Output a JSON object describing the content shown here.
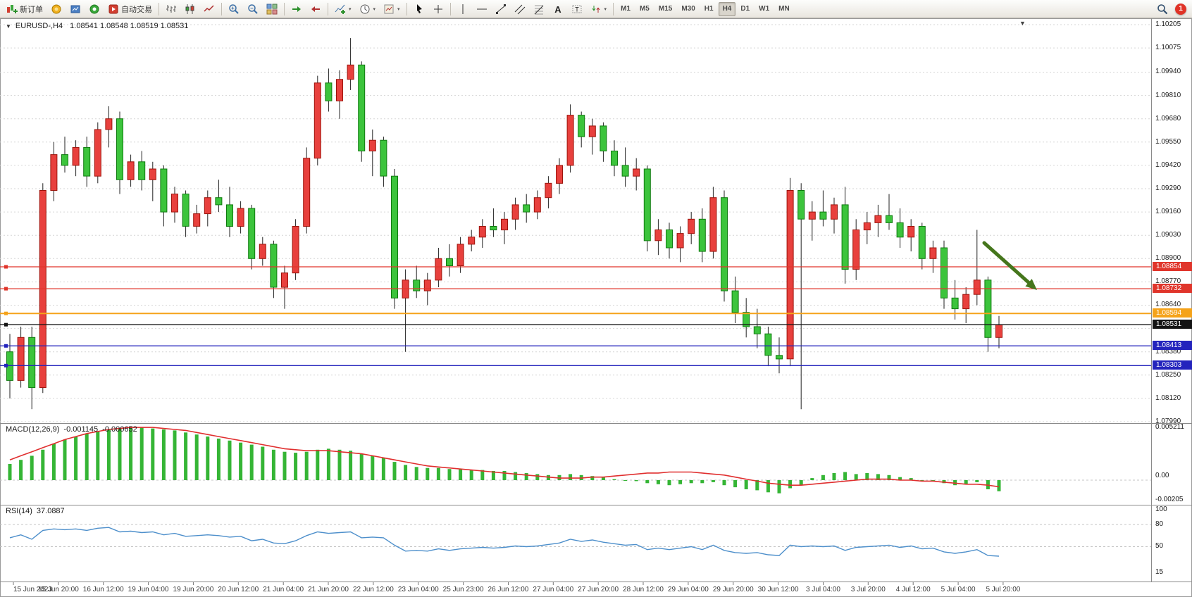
{
  "toolbar": {
    "new_order": "新订单",
    "auto_trading": "自动交易",
    "timeframes": [
      "M1",
      "M5",
      "M15",
      "M30",
      "H1",
      "H4",
      "D1",
      "W1",
      "MN"
    ],
    "active_timeframe": "H4",
    "notification_badge": "1",
    "icons": [
      "new-order",
      "mql5",
      "market",
      "signals",
      "auto-trading",
      "bar-chart",
      "candle-chart",
      "line-chart",
      "zoom-in",
      "zoom-out",
      "tile-windows",
      "auto-scroll",
      "chart-shift",
      "indicators",
      "periods",
      "templates",
      "cursor",
      "crosshair",
      "vertical-line",
      "horizontal-line",
      "trendline",
      "channel",
      "fibonacci",
      "text",
      "text-label",
      "arrows",
      "search",
      "notification"
    ]
  },
  "chart": {
    "symbol_period": "EURUSD-,H4",
    "quote_line": "1.08541 1.08548 1.08519 1.08531"
  },
  "chart_data": {
    "type": "candlestick",
    "symbol": "EURUSD-",
    "period": "H4",
    "up_color": "#e8403d",
    "down_color": "#3cc43c",
    "price_axis": {
      "min": 1.0799,
      "max": 1.10205,
      "labels": [
        1.10205,
        1.10075,
        1.0994,
        1.0981,
        1.0968,
        1.0955,
        1.0942,
        1.0929,
        1.0916,
        1.0903,
        1.089,
        1.0877,
        1.0864,
        1.0838,
        1.0825,
        1.0812,
        1.0799
      ],
      "unlabeled_grid": [
        1.0851
      ]
    },
    "time_labels": [
      "15 Jun 2023",
      "15 Jun 20:00",
      "16 Jun 12:00",
      "19 Jun 04:00",
      "19 Jun 20:00",
      "20 Jun 12:00",
      "21 Jun 04:00",
      "21 Jun 20:00",
      "22 Jun 12:00",
      "23 Jun 04:00",
      "25 Jun 23:00",
      "26 Jun 12:00",
      "27 Jun 04:00",
      "27 Jun 20:00",
      "28 Jun 12:00",
      "29 Jun 04:00",
      "29 Jun 20:00",
      "30 Jun 12:00",
      "3 Jul 04:00",
      "3 Jul 20:00",
      "4 Jul 12:00",
      "5 Jul 04:00",
      "5 Jul 20:00"
    ],
    "candles": [
      [
        1.0838,
        1.0848,
        1.0812,
        1.0822
      ],
      [
        1.0822,
        1.0852,
        1.0818,
        1.0846
      ],
      [
        1.0846,
        1.0852,
        1.0806,
        1.0818
      ],
      [
        1.0818,
        1.0932,
        1.0815,
        1.0928
      ],
      [
        1.0928,
        1.0955,
        1.0922,
        1.0948
      ],
      [
        1.0948,
        1.0958,
        1.0938,
        1.0942
      ],
      [
        1.0942,
        1.0956,
        1.0936,
        1.0952
      ],
      [
        1.0952,
        1.0958,
        1.093,
        1.0936
      ],
      [
        1.0936,
        1.0966,
        1.0932,
        1.0962
      ],
      [
        1.0962,
        1.0975,
        1.0952,
        1.0968
      ],
      [
        1.0968,
        1.0972,
        1.0926,
        1.0934
      ],
      [
        1.0934,
        1.0948,
        1.093,
        1.0944
      ],
      [
        1.0944,
        1.095,
        1.0928,
        1.0934
      ],
      [
        1.0934,
        1.0944,
        1.0922,
        1.094
      ],
      [
        1.094,
        1.0942,
        1.0908,
        1.0916
      ],
      [
        1.0916,
        1.093,
        1.091,
        1.0926
      ],
      [
        1.0926,
        1.0928,
        1.0902,
        1.0908
      ],
      [
        1.0908,
        1.092,
        1.0904,
        1.0915
      ],
      [
        1.0915,
        1.0928,
        1.0908,
        1.0924
      ],
      [
        1.0924,
        1.0934,
        1.0916,
        1.092
      ],
      [
        1.092,
        1.093,
        1.0902,
        1.0908
      ],
      [
        1.0908,
        1.0922,
        1.0904,
        1.0918
      ],
      [
        1.0918,
        1.092,
        1.0884,
        1.089
      ],
      [
        1.089,
        1.0902,
        1.0886,
        1.0898
      ],
      [
        1.0898,
        1.09,
        1.0868,
        1.0874
      ],
      [
        1.0874,
        1.0886,
        1.0862,
        1.0882
      ],
      [
        1.0882,
        1.0912,
        1.0878,
        1.0908
      ],
      [
        1.0908,
        1.0952,
        1.0904,
        1.0946
      ],
      [
        1.0946,
        1.0992,
        1.0942,
        1.0988
      ],
      [
        1.0988,
        1.0996,
        1.0972,
        1.0978
      ],
      [
        1.0978,
        1.0995,
        1.0968,
        1.099
      ],
      [
        1.099,
        1.1013,
        1.0984,
        1.0998
      ],
      [
        1.0998,
        1.1,
        1.0944,
        1.095
      ],
      [
        1.095,
        1.0962,
        1.0936,
        1.0956
      ],
      [
        1.0956,
        1.0958,
        1.093,
        1.0936
      ],
      [
        1.0936,
        1.094,
        1.0862,
        1.0868
      ],
      [
        1.0868,
        1.0884,
        1.0838,
        1.0878
      ],
      [
        1.0878,
        1.0886,
        1.0868,
        1.0872
      ],
      [
        1.0872,
        1.0882,
        1.0864,
        1.0878
      ],
      [
        1.0878,
        1.0896,
        1.0874,
        1.089
      ],
      [
        1.089,
        1.0898,
        1.088,
        1.0886
      ],
      [
        1.0886,
        1.0902,
        1.0882,
        1.0898
      ],
      [
        1.0898,
        1.0906,
        1.0894,
        1.0902
      ],
      [
        1.0902,
        1.0912,
        1.0896,
        1.0908
      ],
      [
        1.0908,
        1.0918,
        1.0902,
        1.0906
      ],
      [
        1.0906,
        1.0916,
        1.0898,
        1.0912
      ],
      [
        1.0912,
        1.0924,
        1.0906,
        1.092
      ],
      [
        1.092,
        1.0926,
        1.091,
        1.0916
      ],
      [
        1.0916,
        1.0928,
        1.0912,
        1.0924
      ],
      [
        1.0924,
        1.0936,
        1.0918,
        1.0932
      ],
      [
        1.0932,
        1.0946,
        1.0926,
        1.0942
      ],
      [
        1.0942,
        1.0976,
        1.0938,
        1.097
      ],
      [
        1.097,
        1.0972,
        1.0952,
        1.0958
      ],
      [
        1.0958,
        1.0968,
        1.0948,
        1.0964
      ],
      [
        1.0964,
        1.0966,
        1.0944,
        1.095
      ],
      [
        1.095,
        1.0956,
        1.0936,
        1.0942
      ],
      [
        1.0942,
        1.0952,
        1.093,
        1.0936
      ],
      [
        1.0936,
        1.0946,
        1.0928,
        1.094
      ],
      [
        1.094,
        1.0942,
        1.0894,
        1.09
      ],
      [
        1.09,
        1.0912,
        1.0892,
        1.0906
      ],
      [
        1.0906,
        1.091,
        1.089,
        1.0896
      ],
      [
        1.0896,
        1.0908,
        1.0888,
        1.0904
      ],
      [
        1.0904,
        1.0916,
        1.0898,
        1.0912
      ],
      [
        1.0912,
        1.0918,
        1.0888,
        1.0894
      ],
      [
        1.0894,
        1.093,
        1.089,
        1.0924
      ],
      [
        1.0924,
        1.0928,
        1.0866,
        1.0872
      ],
      [
        1.0872,
        1.088,
        1.0854,
        1.086
      ],
      [
        1.086,
        1.0868,
        1.0846,
        1.0852
      ],
      [
        1.0852,
        1.0862,
        1.084,
        1.0848
      ],
      [
        1.0848,
        1.0852,
        1.083,
        1.0836
      ],
      [
        1.0836,
        1.0846,
        1.0826,
        1.0834
      ],
      [
        1.0834,
        1.0935,
        1.083,
        1.0928
      ],
      [
        1.0928,
        1.0932,
        1.0806,
        1.0912
      ],
      [
        1.0912,
        1.0922,
        1.09,
        1.0916
      ],
      [
        1.0916,
        1.0928,
        1.0908,
        1.0912
      ],
      [
        1.0912,
        1.0924,
        1.0904,
        1.092
      ],
      [
        1.092,
        1.093,
        1.0876,
        1.0884
      ],
      [
        1.0884,
        1.0912,
        1.0878,
        1.0906
      ],
      [
        1.0906,
        1.0916,
        1.0898,
        1.091
      ],
      [
        1.091,
        1.092,
        1.0902,
        1.0914
      ],
      [
        1.0914,
        1.0926,
        1.0906,
        1.091
      ],
      [
        1.091,
        1.0918,
        1.0896,
        1.0902
      ],
      [
        1.0902,
        1.0912,
        1.0894,
        1.0908
      ],
      [
        1.0908,
        1.091,
        1.0884,
        1.089
      ],
      [
        1.089,
        1.09,
        1.0882,
        1.0896
      ],
      [
        1.0896,
        1.09,
        1.0862,
        1.0868
      ],
      [
        1.0868,
        1.0878,
        1.0856,
        1.0862
      ],
      [
        1.0862,
        1.0874,
        1.0854,
        1.087
      ],
      [
        1.087,
        1.0906,
        1.0864,
        1.0878
      ],
      [
        1.0878,
        1.088,
        1.0838,
        1.0846
      ],
      [
        1.0846,
        1.0858,
        1.084,
        1.0853
      ]
    ],
    "levels": [
      {
        "price": 1.08854,
        "label": "1.08854",
        "color": "#e0352b",
        "kind": "resistance-line"
      },
      {
        "price": 1.08732,
        "label": "1.08732",
        "color": "#e0352b",
        "kind": "resistance-line"
      },
      {
        "price": 1.08594,
        "label": "1.08594",
        "color": "#f5a31a",
        "kind": "support-line"
      },
      {
        "price": 1.08531,
        "label": "1.08531",
        "color": "#141414",
        "kind": "current-price-line"
      },
      {
        "price": 1.08413,
        "label": "1.08413",
        "color": "#2424bd",
        "kind": "support-line"
      },
      {
        "price": 1.08303,
        "label": "1.08303",
        "color": "#2424bd",
        "kind": "support-line"
      }
    ],
    "macd": {
      "label": "MACD(12,26,9)",
      "value_main": "-0.001145",
      "value_signal": "-0.000652",
      "scale_labels": [
        "0.005211",
        "0.00",
        "-0.00205"
      ],
      "histogram_color": "#35b535",
      "signal_color": "#e02f2f",
      "histogram": [
        0.0016,
        0.002,
        0.0024,
        0.003,
        0.0036,
        0.004,
        0.0043,
        0.0046,
        0.0048,
        0.005,
        0.0051,
        0.0052,
        0.0052,
        0.0051,
        0.005,
        0.0049,
        0.0047,
        0.0045,
        0.0043,
        0.0041,
        0.0039,
        0.0037,
        0.0035,
        0.0033,
        0.003,
        0.0028,
        0.0027,
        0.0028,
        0.003,
        0.0031,
        0.003,
        0.0029,
        0.0026,
        0.0024,
        0.0022,
        0.0018,
        0.0015,
        0.0013,
        0.0012,
        0.0012,
        0.0011,
        0.0011,
        0.001,
        0.001,
        0.0009,
        0.0009,
        0.0008,
        0.0007,
        0.0006,
        0.0005,
        0.0005,
        0.0006,
        0.0005,
        0.0004,
        0.0003,
        0.0001,
        0,
        -0.0001,
        -0.0003,
        -0.0004,
        -0.0005,
        -0.0004,
        -0.0003,
        -0.0003,
        -0.0002,
        -0.0005,
        -0.0007,
        -0.0009,
        -0.001,
        -0.0012,
        -0.0013,
        -0.0008,
        -0.0005,
        0.0002,
        0.0005,
        0.0007,
        0.0008,
        0.0006,
        0.0007,
        0.0006,
        0.0005,
        0.0003,
        0.0002,
        0,
        -0.0001,
        -0.0003,
        -0.0005,
        -0.0004,
        -0.0002,
        -0.0009,
        -0.0011
      ],
      "signal": [
        0.002,
        0.0024,
        0.0028,
        0.0032,
        0.0036,
        0.004,
        0.0043,
        0.0046,
        0.0048,
        0.005,
        0.0051,
        0.0052,
        0.0052,
        0.0052,
        0.0051,
        0.005,
        0.0049,
        0.0047,
        0.0045,
        0.0043,
        0.0041,
        0.0039,
        0.0037,
        0.0035,
        0.0033,
        0.0031,
        0.003,
        0.0029,
        0.0029,
        0.0029,
        0.0028,
        0.0027,
        0.0026,
        0.0024,
        0.0022,
        0.002,
        0.0018,
        0.0016,
        0.0014,
        0.0013,
        0.0012,
        0.0011,
        0.001,
        0.0009,
        0.0008,
        0.0007,
        0.0006,
        0.0005,
        0.0004,
        0.0003,
        0.0002,
        0.0002,
        0.0002,
        0.0003,
        0.0003,
        0.0004,
        0.0005,
        0.0006,
        0.0007,
        0.0007,
        0.0008,
        0.0008,
        0.0008,
        0.0007,
        0.0006,
        0.0005,
        0.0003,
        0.0001,
        -0.0001,
        -0.0003,
        -0.0004,
        -0.0005,
        -0.0005,
        -0.0004,
        -0.0003,
        -0.0002,
        -0.0001,
        0,
        0.0001,
        0.0001,
        0.0001,
        0,
        0,
        -0.0001,
        -0.0001,
        -0.0002,
        -0.0003,
        -0.0004,
        -0.0004,
        -0.0005,
        -0.00065
      ]
    },
    "rsi": {
      "label": "RSI(14)",
      "value": "37.0887",
      "line_color": "#4d8fcb",
      "scale_labels": [
        "100",
        "80",
        "50",
        "15"
      ],
      "level_lines": [
        80,
        50
      ],
      "series": [
        62,
        66,
        60,
        72,
        74,
        73,
        74,
        72,
        75,
        76,
        70,
        71,
        69,
        70,
        66,
        68,
        64,
        65,
        66,
        65,
        63,
        64,
        58,
        60,
        55,
        54,
        58,
        65,
        70,
        68,
        69,
        70,
        62,
        63,
        62,
        52,
        44,
        45,
        44,
        47,
        45,
        47,
        48,
        49,
        48,
        49,
        51,
        50,
        51,
        53,
        55,
        60,
        57,
        59,
        56,
        54,
        52,
        53,
        46,
        48,
        46,
        48,
        50,
        46,
        52,
        45,
        42,
        41,
        42,
        39,
        38,
        52,
        50,
        51,
        50,
        51,
        45,
        49,
        50,
        51,
        52,
        49,
        51,
        47,
        48,
        43,
        41,
        43,
        46,
        38,
        37.1
      ]
    },
    "annotation_arrow": {
      "from": [
        1397,
        345
      ],
      "to": [
        1472,
        412
      ],
      "color": "#45761c"
    }
  }
}
